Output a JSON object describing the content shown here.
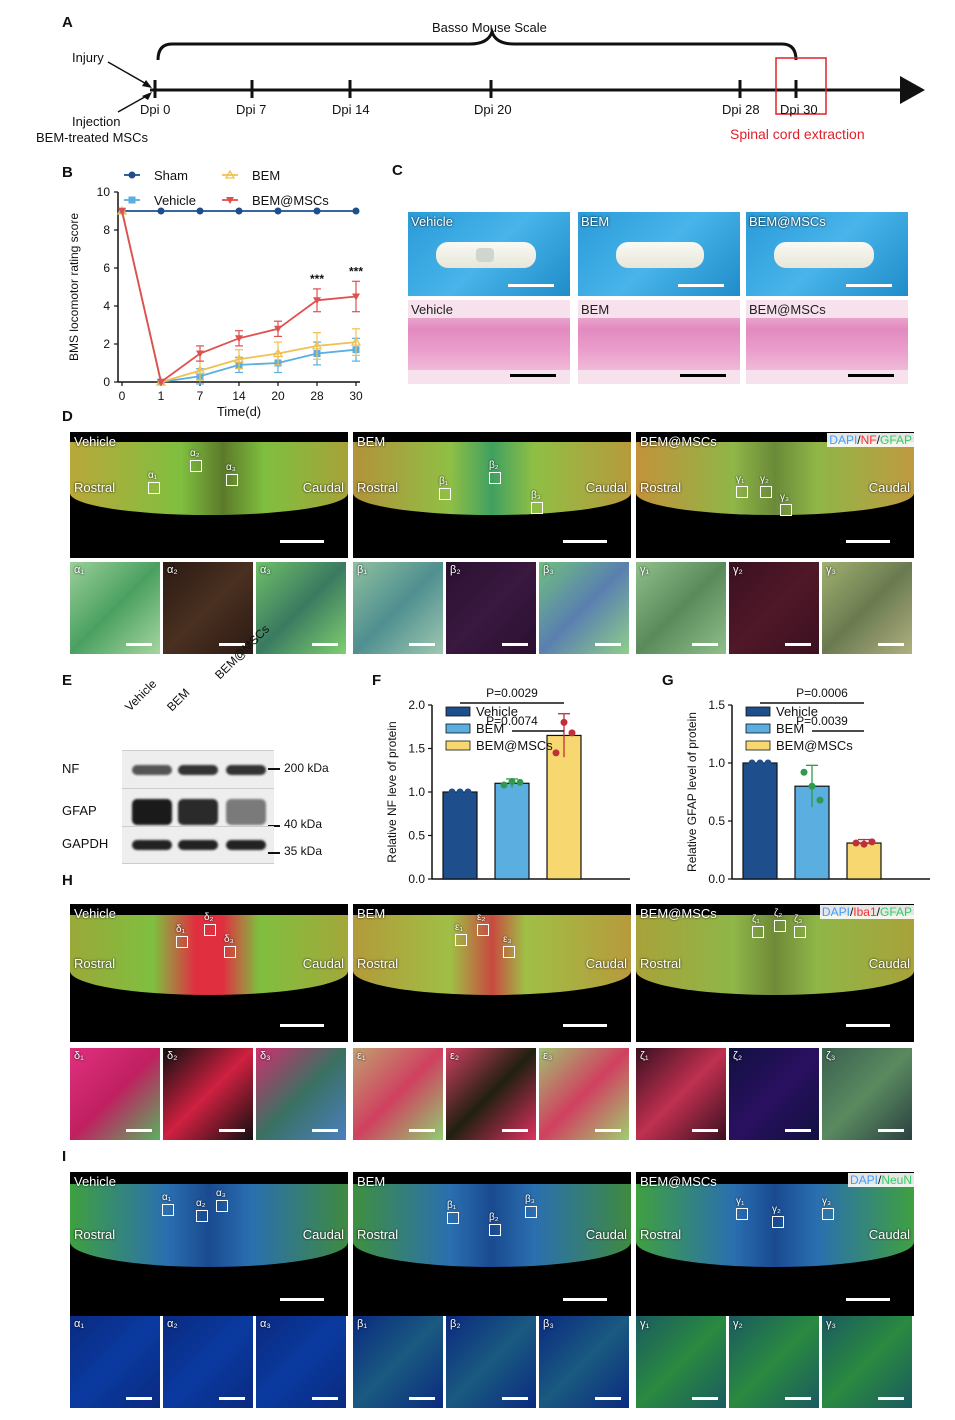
{
  "panels": {
    "A": "A",
    "B": "B",
    "C": "C",
    "D": "D",
    "E": "E",
    "F": "F",
    "G": "G",
    "H": "H",
    "I": "I"
  },
  "timeline": {
    "title": "Basso Mouse Scale",
    "injury": "Injury",
    "injection_line1": "Injection",
    "injection_line2": "BEM-treated MSCs",
    "ticks": [
      "Dpi 0",
      "Dpi 7",
      "Dpi 14",
      "Dpi 20",
      "Dpi 28",
      "Dpi 30"
    ],
    "extraction": "Spinal cord extraction",
    "colors": {
      "extraction": "#e0202a"
    }
  },
  "chart_data": [
    {
      "type": "line",
      "panel": "B",
      "ylabel": "BMS locomotor rating score",
      "xlabel": "Time(d)",
      "categories": [
        "0",
        "1",
        "7",
        "14",
        "20",
        "28",
        "30"
      ],
      "ylim": [
        0,
        10
      ],
      "yticks": [
        "0",
        "2",
        "4",
        "6",
        "8",
        "10"
      ],
      "significance": [
        "***",
        "***"
      ],
      "series": [
        {
          "name": "Sham",
          "color": "#1f4e8c",
          "values": [
            9,
            9,
            9,
            9,
            9,
            9,
            9
          ],
          "err": [
            0,
            0,
            0,
            0,
            0,
            0,
            0
          ]
        },
        {
          "name": "Vehicle",
          "color": "#5aaee0",
          "values": [
            9,
            0,
            0.3,
            0.9,
            1.0,
            1.5,
            1.7
          ],
          "err": [
            0,
            0,
            0.4,
            0.4,
            0.5,
            0.6,
            0.6
          ]
        },
        {
          "name": "BEM",
          "color": "#f0c050",
          "values": [
            9,
            0,
            0.6,
            1.2,
            1.5,
            1.9,
            2.1
          ],
          "err": [
            0,
            0,
            0.5,
            0.5,
            0.6,
            0.7,
            0.7
          ]
        },
        {
          "name": "BEM@MSCs",
          "color": "#e05050",
          "values": [
            9,
            0,
            1.5,
            2.3,
            2.8,
            4.3,
            4.5
          ],
          "err": [
            0,
            0,
            0.4,
            0.4,
            0.4,
            0.6,
            0.8
          ]
        }
      ]
    },
    {
      "type": "bar",
      "panel": "F",
      "ylabel": "Relative NF leve of protein",
      "categories": [
        "Vehicle",
        "BEM",
        "BEM@MSCs"
      ],
      "values": [
        1.0,
        1.1,
        1.65
      ],
      "err": [
        0.0,
        0.05,
        0.25
      ],
      "points": [
        [
          1.0,
          1.0,
          1.0
        ],
        [
          1.08,
          1.12,
          1.11
        ],
        [
          1.45,
          1.8,
          1.68
        ]
      ],
      "colors": [
        "#1f4e8c",
        "#5aaee0",
        "#f7d870"
      ],
      "point_colors": [
        "#1f4e8c",
        "#2e9a4e",
        "#c0303a"
      ],
      "ylim": [
        0,
        2.0
      ],
      "yticks": [
        "0.0",
        "0.5",
        "1.0",
        "1.5",
        "2.0"
      ],
      "pvalues": [
        "P=0.0029",
        "P=0.0074"
      ]
    },
    {
      "type": "bar",
      "panel": "G",
      "ylabel": "Relative GFAP level of protein",
      "categories": [
        "Vehicle",
        "BEM",
        "BEM@MSCs"
      ],
      "values": [
        1.0,
        0.8,
        0.31
      ],
      "err": [
        0.0,
        0.18,
        0.03
      ],
      "points": [
        [
          1.0,
          1.0,
          1.0
        ],
        [
          0.92,
          0.8,
          0.68
        ],
        [
          0.31,
          0.3,
          0.32
        ]
      ],
      "colors": [
        "#1f4e8c",
        "#5aaee0",
        "#f7d870"
      ],
      "point_colors": [
        "#1f4e8c",
        "#2e9a4e",
        "#c0303a"
      ],
      "ylim": [
        0,
        1.5
      ],
      "yticks": [
        "0.0",
        "0.5",
        "1.0",
        "1.5"
      ],
      "pvalues": [
        "P=0.0006",
        "P=0.0039"
      ]
    }
  ],
  "panelC": {
    "top_labels": [
      "Vehicle",
      "BEM",
      "BEM@MSCs"
    ],
    "bottom_labels": [
      "Vehicle",
      "BEM",
      "BEM@MSCs"
    ]
  },
  "panelD": {
    "groups": [
      "Vehicle",
      "BEM",
      "BEM@MSCs"
    ],
    "rostral": "Rostral",
    "caudal": "Caudal",
    "stain": {
      "dapi": "DAPI",
      "sep": "/",
      "nf": "NF",
      "gfap": "GFAP"
    },
    "colors": {
      "dapi": "#3fa0ff",
      "nf": "#ff3030",
      "gfap": "#30d060"
    },
    "sub": [
      [
        "α₁",
        "α₂",
        "α₃"
      ],
      [
        "β₁",
        "β₂",
        "β₃"
      ],
      [
        "γ₁",
        "γ₂",
        "γ₃"
      ]
    ]
  },
  "panelE": {
    "lanes": [
      "Vehicle",
      "BEM",
      "BEM@MSCs"
    ],
    "rows": [
      "NF",
      "GFAP",
      "GAPDH"
    ],
    "markers": [
      "200 kDa",
      "40 kDa",
      "35 kDa"
    ]
  },
  "panelH": {
    "groups": [
      "Vehicle",
      "BEM",
      "BEM@MSCs"
    ],
    "rostral": "Rostral",
    "caudal": "Caudal",
    "stain": {
      "dapi": "DAPI",
      "sep": "/",
      "iba": "Iba1",
      "gfap": "GFAP"
    },
    "colors": {
      "dapi": "#3fa0ff",
      "iba": "#ff3030",
      "gfap": "#30d060"
    },
    "sub": [
      [
        "δ₁",
        "δ₂",
        "δ₃"
      ],
      [
        "ε₁",
        "ε₂",
        "ε₃"
      ],
      [
        "ζ₁",
        "ζ₂",
        "ζ₃"
      ]
    ]
  },
  "panelI": {
    "groups": [
      "Vehicle",
      "BEM",
      "BEM@MSCs"
    ],
    "rostral": "Rostral",
    "caudal": "Caudal",
    "stain": {
      "dapi": "DAPI",
      "sep": "/",
      "neun": "NeuN"
    },
    "colors": {
      "dapi": "#3fa0ff",
      "neun": "#30d060"
    },
    "sub": [
      [
        "α₁",
        "α₂",
        "α₃"
      ],
      [
        "β₁",
        "β₂",
        "β₃"
      ],
      [
        "γ₁",
        "γ₂",
        "γ₃"
      ]
    ]
  }
}
